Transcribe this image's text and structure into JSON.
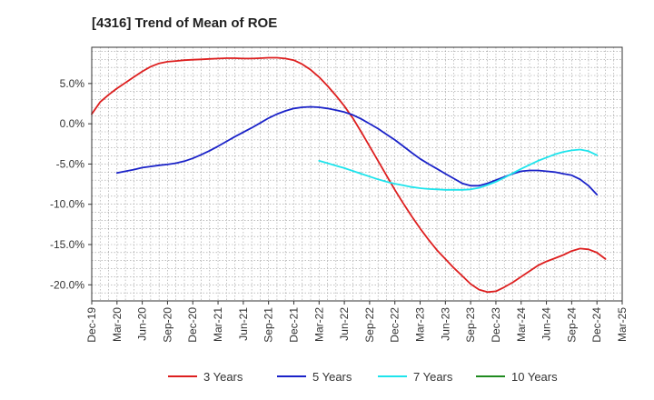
{
  "chart_data": {
    "type": "line",
    "title": "[4316]  Trend of Mean of ROE",
    "xlabel": "",
    "ylabel": "",
    "x_start": "Dec-19",
    "x_ticks": [
      "Dec-19",
      "Mar-20",
      "Jun-20",
      "Sep-20",
      "Dec-20",
      "Mar-21",
      "Jun-21",
      "Sep-21",
      "Dec-21",
      "Mar-22",
      "Jun-22",
      "Sep-22",
      "Dec-22",
      "Mar-23",
      "Jun-23",
      "Sep-23",
      "Dec-23",
      "Mar-24",
      "Jun-24",
      "Sep-24",
      "Dec-24",
      "Mar-25"
    ],
    "y_ticks": [
      5.0,
      0.0,
      -5.0,
      -10.0,
      -15.0,
      -20.0
    ],
    "y_tick_labels": [
      "5.0%",
      "0.0%",
      "-5.0%",
      "-10.0%",
      "-15.0%",
      "-20.0%"
    ],
    "ylim": [
      -22,
      9.5
    ],
    "grid": true,
    "legend_position": "bottom",
    "series": [
      {
        "name": "3 Years",
        "color": "#dd1f1f",
        "points": [
          [
            "Dec-19",
            1.2
          ],
          [
            "Jan-20",
            2.7
          ],
          [
            "Feb-20",
            3.6
          ],
          [
            "Mar-20",
            4.4
          ],
          [
            "Apr-20",
            5.1
          ],
          [
            "May-20",
            5.8
          ],
          [
            "Jun-20",
            6.5
          ],
          [
            "Jul-20",
            7.1
          ],
          [
            "Aug-20",
            7.5
          ],
          [
            "Sep-20",
            7.7
          ],
          [
            "Oct-20",
            7.8
          ],
          [
            "Nov-20",
            7.9
          ],
          [
            "Dec-20",
            7.95
          ],
          [
            "Jan-21",
            8.0
          ],
          [
            "Feb-21",
            8.05
          ],
          [
            "Mar-21",
            8.1
          ],
          [
            "Apr-21",
            8.15
          ],
          [
            "May-21",
            8.15
          ],
          [
            "Jun-21",
            8.1
          ],
          [
            "Jul-21",
            8.1
          ],
          [
            "Aug-21",
            8.15
          ],
          [
            "Sep-21",
            8.2
          ],
          [
            "Oct-21",
            8.2
          ],
          [
            "Nov-21",
            8.1
          ],
          [
            "Dec-21",
            7.9
          ],
          [
            "Jan-22",
            7.4
          ],
          [
            "Feb-22",
            6.7
          ],
          [
            "Mar-22",
            5.8
          ],
          [
            "Apr-22",
            4.7
          ],
          [
            "May-22",
            3.5
          ],
          [
            "Jun-22",
            2.2
          ],
          [
            "Jul-22",
            0.7
          ],
          [
            "Aug-22",
            -1.0
          ],
          [
            "Sep-22",
            -2.8
          ],
          [
            "Oct-22",
            -4.6
          ],
          [
            "Nov-22",
            -6.4
          ],
          [
            "Dec-22",
            -8.2
          ],
          [
            "Jan-23",
            -9.9
          ],
          [
            "Feb-23",
            -11.5
          ],
          [
            "Mar-23",
            -13.0
          ],
          [
            "Apr-23",
            -14.4
          ],
          [
            "May-23",
            -15.7
          ],
          [
            "Jun-23",
            -16.8
          ],
          [
            "Jul-23",
            -17.9
          ],
          [
            "Aug-23",
            -18.9
          ],
          [
            "Sep-23",
            -19.9
          ],
          [
            "Oct-23",
            -20.6
          ],
          [
            "Nov-23",
            -20.9
          ],
          [
            "Dec-23",
            -20.8
          ],
          [
            "Jan-24",
            -20.3
          ],
          [
            "Feb-24",
            -19.7
          ],
          [
            "Mar-24",
            -19.0
          ],
          [
            "Apr-24",
            -18.3
          ],
          [
            "May-24",
            -17.6
          ],
          [
            "Jun-24",
            -17.1
          ],
          [
            "Jul-24",
            -16.7
          ],
          [
            "Aug-24",
            -16.3
          ],
          [
            "Sep-24",
            -15.8
          ],
          [
            "Oct-24",
            -15.5
          ],
          [
            "Nov-24",
            -15.6
          ],
          [
            "Dec-24",
            -16.0
          ],
          [
            "Jan-25",
            -16.8
          ]
        ]
      },
      {
        "name": "5 Years",
        "color": "#1a22c8",
        "points": [
          [
            "Mar-20",
            -6.1
          ],
          [
            "Apr-20",
            -5.9
          ],
          [
            "May-20",
            -5.7
          ],
          [
            "Jun-20",
            -5.45
          ],
          [
            "Jul-20",
            -5.3
          ],
          [
            "Aug-20",
            -5.15
          ],
          [
            "Sep-20",
            -5.05
          ],
          [
            "Oct-20",
            -4.9
          ],
          [
            "Nov-20",
            -4.65
          ],
          [
            "Dec-20",
            -4.3
          ],
          [
            "Jan-21",
            -3.85
          ],
          [
            "Feb-21",
            -3.35
          ],
          [
            "Mar-21",
            -2.8
          ],
          [
            "Apr-21",
            -2.2
          ],
          [
            "May-21",
            -1.6
          ],
          [
            "Jun-21",
            -1.05
          ],
          [
            "Jul-21",
            -0.5
          ],
          [
            "Aug-21",
            0.1
          ],
          [
            "Sep-21",
            0.7
          ],
          [
            "Oct-21",
            1.2
          ],
          [
            "Nov-21",
            1.6
          ],
          [
            "Dec-21",
            1.9
          ],
          [
            "Jan-22",
            2.05
          ],
          [
            "Feb-22",
            2.1
          ],
          [
            "Mar-22",
            2.05
          ],
          [
            "Apr-22",
            1.9
          ],
          [
            "May-22",
            1.7
          ],
          [
            "Jun-22",
            1.45
          ],
          [
            "Jul-22",
            1.1
          ],
          [
            "Aug-22",
            0.6
          ],
          [
            "Sep-22",
            0.0
          ],
          [
            "Oct-22",
            -0.6
          ],
          [
            "Nov-22",
            -1.3
          ],
          [
            "Dec-22",
            -2.0
          ],
          [
            "Jan-23",
            -2.8
          ],
          [
            "Feb-23",
            -3.6
          ],
          [
            "Mar-23",
            -4.35
          ],
          [
            "Apr-23",
            -5.0
          ],
          [
            "May-23",
            -5.6
          ],
          [
            "Jun-23",
            -6.2
          ],
          [
            "Jul-23",
            -6.8
          ],
          [
            "Aug-23",
            -7.4
          ],
          [
            "Sep-23",
            -7.7
          ],
          [
            "Oct-23",
            -7.7
          ],
          [
            "Nov-23",
            -7.4
          ],
          [
            "Dec-23",
            -7.0
          ],
          [
            "Jan-24",
            -6.6
          ],
          [
            "Feb-24",
            -6.2
          ],
          [
            "Mar-24",
            -5.9
          ],
          [
            "Apr-24",
            -5.8
          ],
          [
            "May-24",
            -5.8
          ],
          [
            "Jun-24",
            -5.9
          ],
          [
            "Jul-24",
            -6.0
          ],
          [
            "Aug-24",
            -6.2
          ],
          [
            "Sep-24",
            -6.4
          ],
          [
            "Oct-24",
            -6.9
          ],
          [
            "Nov-24",
            -7.7
          ],
          [
            "Dec-24",
            -8.8
          ]
        ]
      },
      {
        "name": "7 Years",
        "color": "#1de4ec",
        "points": [
          [
            "Mar-22",
            -4.6
          ],
          [
            "Apr-22",
            -4.9
          ],
          [
            "May-22",
            -5.2
          ],
          [
            "Jun-22",
            -5.5
          ],
          [
            "Jul-22",
            -5.85
          ],
          [
            "Aug-22",
            -6.2
          ],
          [
            "Sep-22",
            -6.55
          ],
          [
            "Oct-22",
            -6.9
          ],
          [
            "Nov-22",
            -7.2
          ],
          [
            "Dec-22",
            -7.45
          ],
          [
            "Jan-23",
            -7.65
          ],
          [
            "Feb-23",
            -7.85
          ],
          [
            "Mar-23",
            -8.0
          ],
          [
            "Apr-23",
            -8.1
          ],
          [
            "May-23",
            -8.15
          ],
          [
            "Jun-23",
            -8.2
          ],
          [
            "Jul-23",
            -8.2
          ],
          [
            "Aug-23",
            -8.2
          ],
          [
            "Sep-23",
            -8.15
          ],
          [
            "Oct-23",
            -7.95
          ],
          [
            "Nov-23",
            -7.6
          ],
          [
            "Dec-23",
            -7.2
          ],
          [
            "Jan-24",
            -6.7
          ],
          [
            "Feb-24",
            -6.15
          ],
          [
            "Mar-24",
            -5.6
          ],
          [
            "Apr-24",
            -5.1
          ],
          [
            "May-24",
            -4.6
          ],
          [
            "Jun-24",
            -4.2
          ],
          [
            "Jul-24",
            -3.8
          ],
          [
            "Aug-24",
            -3.5
          ],
          [
            "Sep-24",
            -3.3
          ],
          [
            "Oct-24",
            -3.2
          ],
          [
            "Nov-24",
            -3.4
          ],
          [
            "Dec-24",
            -3.9
          ]
        ]
      },
      {
        "name": "10 Years",
        "color": "#1f8a1f",
        "points": []
      }
    ]
  }
}
